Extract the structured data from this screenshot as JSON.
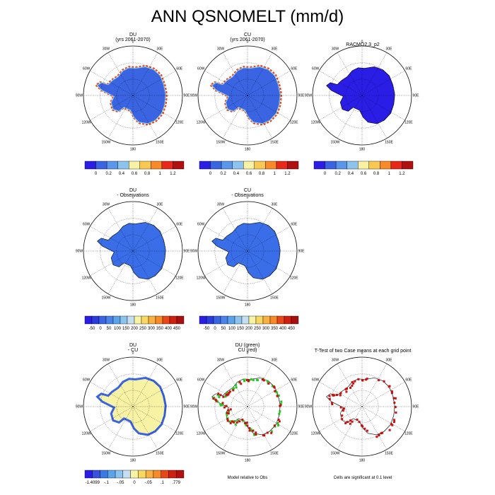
{
  "page": {
    "title": "ANN QSNOMELT (mm/d)"
  },
  "lon_labels": [
    "0",
    "30E",
    "60E",
    "90E",
    "120E",
    "150E",
    "180",
    "150W",
    "120W",
    "90W",
    "60W",
    "30W"
  ],
  "panels": [
    {
      "id": "du",
      "title": [
        "DU",
        "(yrs 2061-2070)"
      ],
      "fill": "#3a64e2",
      "type": "field"
    },
    {
      "id": "cu",
      "title": [
        "CU",
        "(yrs 2061-2070)"
      ],
      "fill": "#3a64e2",
      "type": "field"
    },
    {
      "id": "racmo",
      "title": [
        "RACMO2.3_p2"
      ],
      "fill": "#2a1ee6",
      "type": "field"
    },
    {
      "id": "du-obs",
      "title": [
        "DU",
        "- Observations"
      ],
      "fill": "#3a6ee8",
      "type": "field"
    },
    {
      "id": "cu-obs",
      "title": [
        "CU",
        "- Observations"
      ],
      "fill": "#3a6ee8",
      "type": "field"
    },
    {
      "id": "du-cu",
      "title": [
        "DU",
        "- CU"
      ],
      "fill": "#f8f2a4",
      "type": "field"
    },
    {
      "id": "sig-green",
      "title": [
        "DU (green)",
        "CU (red)"
      ],
      "fill": "none",
      "type": "outline"
    },
    {
      "id": "ttest",
      "title": [
        "T-Test of two Case means at each grid point"
      ],
      "fill": "none",
      "type": "outline"
    }
  ],
  "colorbars": [
    {
      "labels": [
        "0",
        "0.2",
        "0.4",
        "0.6",
        "0.8",
        "1",
        "1.2"
      ],
      "colors": [
        "#2a1ee6",
        "#3a64e2",
        "#5a96ea",
        "#8cc4ee",
        "#f8f2a4",
        "#f8c850",
        "#f88a28",
        "#e82818",
        "#b01010"
      ]
    },
    {
      "labels": [
        "-50",
        "0",
        "50",
        "100",
        "150",
        "200",
        "250",
        "300",
        "350",
        "400",
        "450"
      ],
      "colors": [
        "#2a1ee6",
        "#2a3cdc",
        "#3a64e2",
        "#4a84ea",
        "#5aa4ec",
        "#8cc4ee",
        "#c4e0f0",
        "#f8f2a4",
        "#f8d860",
        "#f8b040",
        "#f88a28",
        "#e84818",
        "#d02010",
        "#a81010"
      ]
    },
    {
      "labels": [
        "-1.4099",
        "-.1",
        "-.05",
        "0",
        "-.05",
        ".1",
        ".779"
      ],
      "colors": [
        "#2a1ee6",
        "#3a50de",
        "#3a78e4",
        "#5aa4ec",
        "#8cc4ee",
        "#c4e0f0",
        "#f8f2a4",
        "#f8d860",
        "#f8b040",
        "#f88a28",
        "#e84818",
        "#d02010",
        "#b01010"
      ]
    }
  ],
  "footers": {
    "obs": "Model relative to Obs",
    "sig": "Cells are significant at 0.1 level"
  }
}
